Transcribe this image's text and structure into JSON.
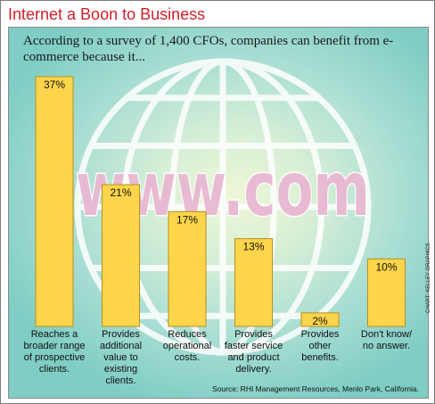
{
  "title": "Internet a Boon to Business",
  "intro": "According to a survey of 1,400 CFOs, companies can benefit from e-commerce because it...",
  "watermark_text": "www.com",
  "source": "Source: RHI Management Resources, Menlo Park, California.",
  "credit": "CHART: KELLEY GRAPHICS",
  "colors": {
    "title": "#d01f2a",
    "bar_fill": "#fcd54a",
    "bar_edge": "#b89020",
    "globe_lines": "#ffffff",
    "watermark": "#e9b8d2"
  },
  "chart_data": {
    "type": "bar",
    "categories": [
      "Reaches a broader range of prospective clients.",
      "Provides additional value to existing clients.",
      "Reduces operational costs.",
      "Provides faster service and product delivery.",
      "Provides other benefits.",
      "Don't know/ no answer."
    ],
    "category_lines": [
      [
        "Reaches a",
        "broader range",
        "of prospective",
        "clients."
      ],
      [
        "Provides",
        "additional",
        "value to",
        "existing",
        "clients."
      ],
      [
        "Reduces",
        "operational",
        "costs."
      ],
      [
        "Provides",
        "faster service",
        "and product",
        "delivery."
      ],
      [
        "Provides",
        "other",
        "benefits."
      ],
      [
        "Don't know/",
        "no answer."
      ]
    ],
    "values": [
      37,
      21,
      17,
      13,
      2,
      10
    ],
    "value_labels": [
      "37%",
      "21%",
      "17%",
      "13%",
      "2%",
      "10%"
    ],
    "unit": "%",
    "ylim": [
      0,
      37
    ],
    "grid": false,
    "legend": "none"
  }
}
